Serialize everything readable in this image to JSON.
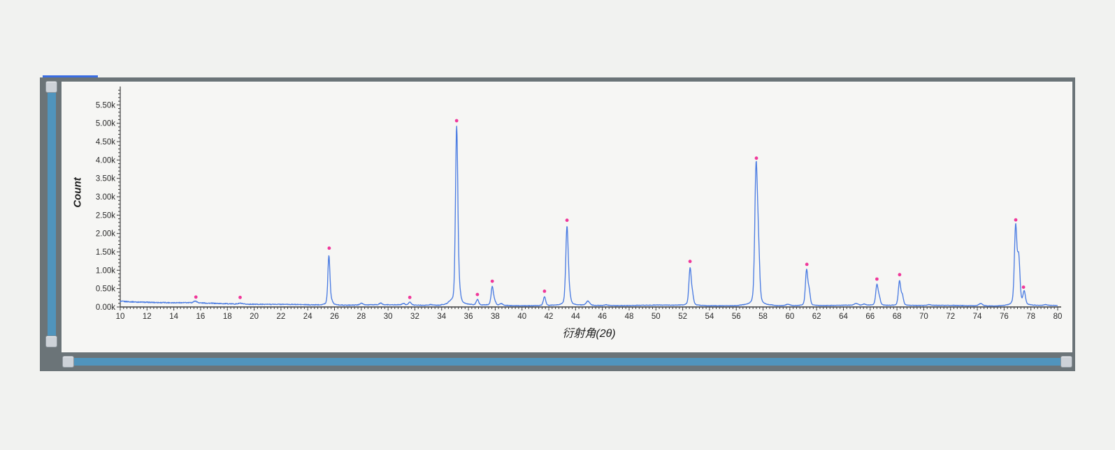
{
  "window": {
    "background": "#f1f2f0"
  },
  "frame": {
    "color": "#6b7478",
    "indicator_color": "#3a6de2"
  },
  "scrollbar": {
    "bar_color": "#5094bc",
    "handle_color": "#cdd2d8",
    "handle_border": "#8d969d"
  },
  "chart_data": {
    "type": "line",
    "title": "",
    "xlabel": "衍射角(2θ)",
    "ylabel": "Count",
    "xlim": [
      10,
      80
    ],
    "ylim": [
      0,
      6.0
    ],
    "x_label_step": 2,
    "x_minor_step": 0.25,
    "y_label_step": 0.5,
    "y_label_max": 5.5,
    "y_minor_step": 0.1,
    "y_unit": "k",
    "grid": false,
    "legend": false,
    "axis_color": "#3c3c3c",
    "tick_label_color": "#2b2b2b",
    "line_color": "#4b7ce2",
    "marker_color": "#f0389a",
    "plot_background": "#f6f6f4",
    "baseline": {
      "base": 0.04,
      "amp": 0.115,
      "decay": 9
    },
    "noise_amp": 0.014,
    "peaks": [
      [
        15.6,
        0.05,
        0.12
      ],
      [
        18.95,
        0.025,
        0.12
      ],
      [
        25.58,
        1.32,
        0.075
      ],
      [
        25.75,
        0.1,
        0.11
      ],
      [
        28.0,
        0.05,
        0.1
      ],
      [
        29.45,
        0.045,
        0.09
      ],
      [
        31.15,
        0.04,
        0.1
      ],
      [
        31.62,
        0.08,
        0.09
      ],
      [
        33.2,
        0.02,
        0.1
      ],
      [
        34.65,
        0.06,
        0.16
      ],
      [
        35.12,
        4.8,
        0.085
      ],
      [
        35.3,
        0.3,
        0.1
      ],
      [
        36.67,
        0.15,
        0.09
      ],
      [
        37.78,
        0.5,
        0.085
      ],
      [
        37.97,
        0.09,
        0.08
      ],
      [
        38.45,
        0.045,
        0.1
      ],
      [
        41.68,
        0.24,
        0.085
      ],
      [
        43.36,
        2.12,
        0.09
      ],
      [
        43.54,
        0.22,
        0.09
      ],
      [
        44.92,
        0.115,
        0.13
      ],
      [
        46.3,
        0.02,
        0.12
      ],
      [
        52.55,
        1.0,
        0.085
      ],
      [
        52.73,
        0.26,
        0.08
      ],
      [
        57.48,
        3.68,
        0.095
      ],
      [
        57.66,
        1.3,
        0.09
      ],
      [
        59.85,
        0.04,
        0.16
      ],
      [
        61.25,
        0.95,
        0.085
      ],
      [
        61.44,
        0.38,
        0.08
      ],
      [
        64.95,
        0.045,
        0.13
      ],
      [
        65.55,
        0.03,
        0.1
      ],
      [
        66.5,
        0.55,
        0.085
      ],
      [
        66.68,
        0.2,
        0.08
      ],
      [
        68.19,
        0.66,
        0.085
      ],
      [
        68.4,
        0.26,
        0.08
      ],
      [
        70.4,
        0.02,
        0.12
      ],
      [
        74.25,
        0.065,
        0.13
      ],
      [
        76.86,
        2.12,
        0.09
      ],
      [
        77.09,
        1.25,
        0.09
      ],
      [
        77.5,
        0.36,
        0.09
      ],
      [
        79.1,
        0.02,
        0.1
      ]
    ],
    "markers": [
      [
        15.65,
        0.27
      ],
      [
        18.95,
        0.26
      ],
      [
        25.6,
        1.6
      ],
      [
        31.62,
        0.26
      ],
      [
        35.12,
        5.07
      ],
      [
        36.67,
        0.34
      ],
      [
        37.78,
        0.7
      ],
      [
        41.68,
        0.43
      ],
      [
        43.36,
        2.36
      ],
      [
        52.55,
        1.24
      ],
      [
        57.5,
        4.05
      ],
      [
        61.27,
        1.16
      ],
      [
        66.5,
        0.76
      ],
      [
        68.2,
        0.88
      ],
      [
        76.87,
        2.37
      ],
      [
        77.45,
        0.54
      ]
    ]
  }
}
